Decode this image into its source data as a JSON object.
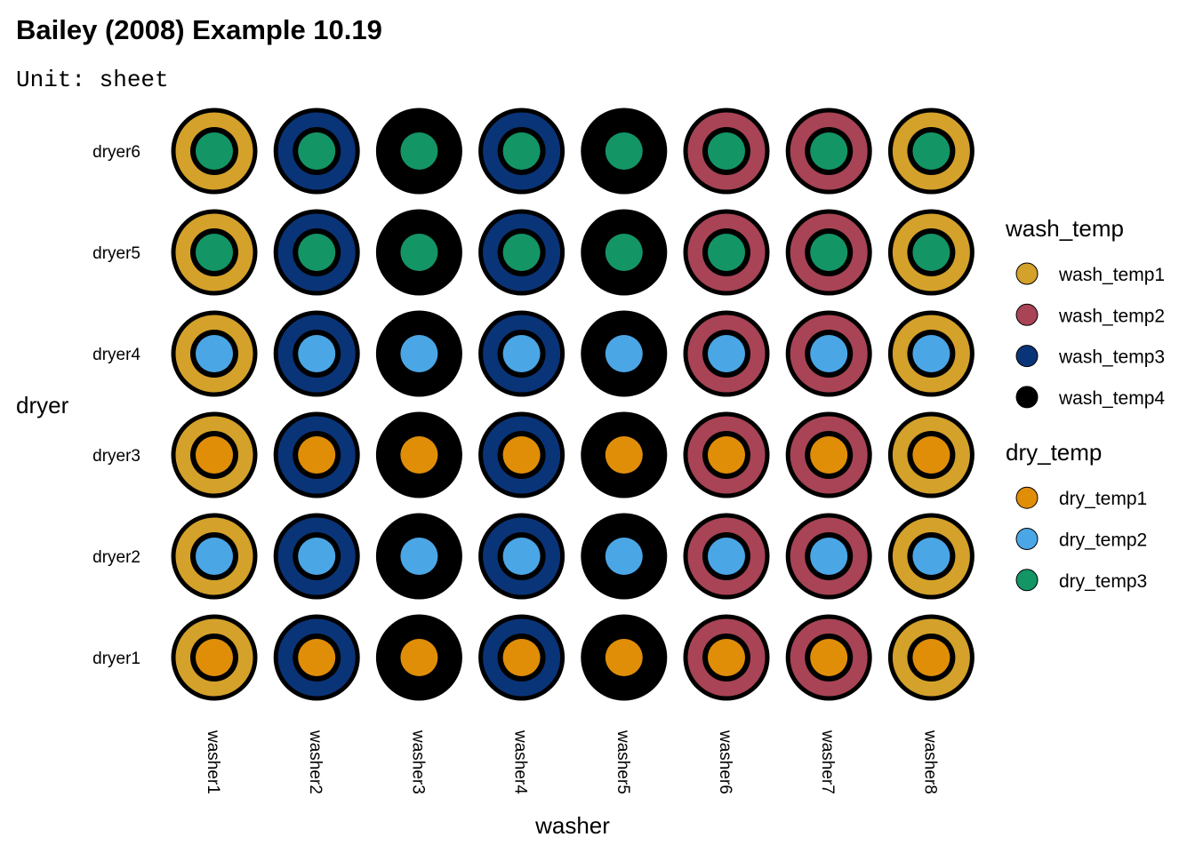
{
  "chart_data": {
    "type": "scatter",
    "title": "Bailey (2008) Example 10.19",
    "subtitle": "Unit: sheet",
    "xlabel": "washer",
    "ylabel": "dryer",
    "x_categories": [
      "washer1",
      "washer2",
      "washer3",
      "washer4",
      "washer5",
      "washer6",
      "washer7",
      "washer8"
    ],
    "y_categories": [
      "dryer1",
      "dryer2",
      "dryer3",
      "dryer4",
      "dryer5",
      "dryer6"
    ],
    "grid": false,
    "legend_position": "right",
    "wash_temp_by_washer": [
      "wash_temp1",
      "wash_temp3",
      "wash_temp4",
      "wash_temp3",
      "wash_temp4",
      "wash_temp2",
      "wash_temp2",
      "wash_temp1"
    ],
    "dry_temp_by_dryer": [
      "dry_temp1",
      "dry_temp2",
      "dry_temp1",
      "dry_temp2",
      "dry_temp3",
      "dry_temp3"
    ],
    "legends": [
      {
        "title": "wash_temp",
        "items": [
          {
            "label": "wash_temp1",
            "color": "#D4A12A"
          },
          {
            "label": "wash_temp2",
            "color": "#A84455"
          },
          {
            "label": "wash_temp3",
            "color": "#0A3478"
          },
          {
            "label": "wash_temp4",
            "color": "#000000"
          }
        ]
      },
      {
        "title": "dry_temp",
        "items": [
          {
            "label": "dry_temp1",
            "color": "#E08E08"
          },
          {
            "label": "dry_temp2",
            "color": "#4BA6E6"
          },
          {
            "label": "dry_temp3",
            "color": "#149566"
          }
        ]
      }
    ]
  }
}
